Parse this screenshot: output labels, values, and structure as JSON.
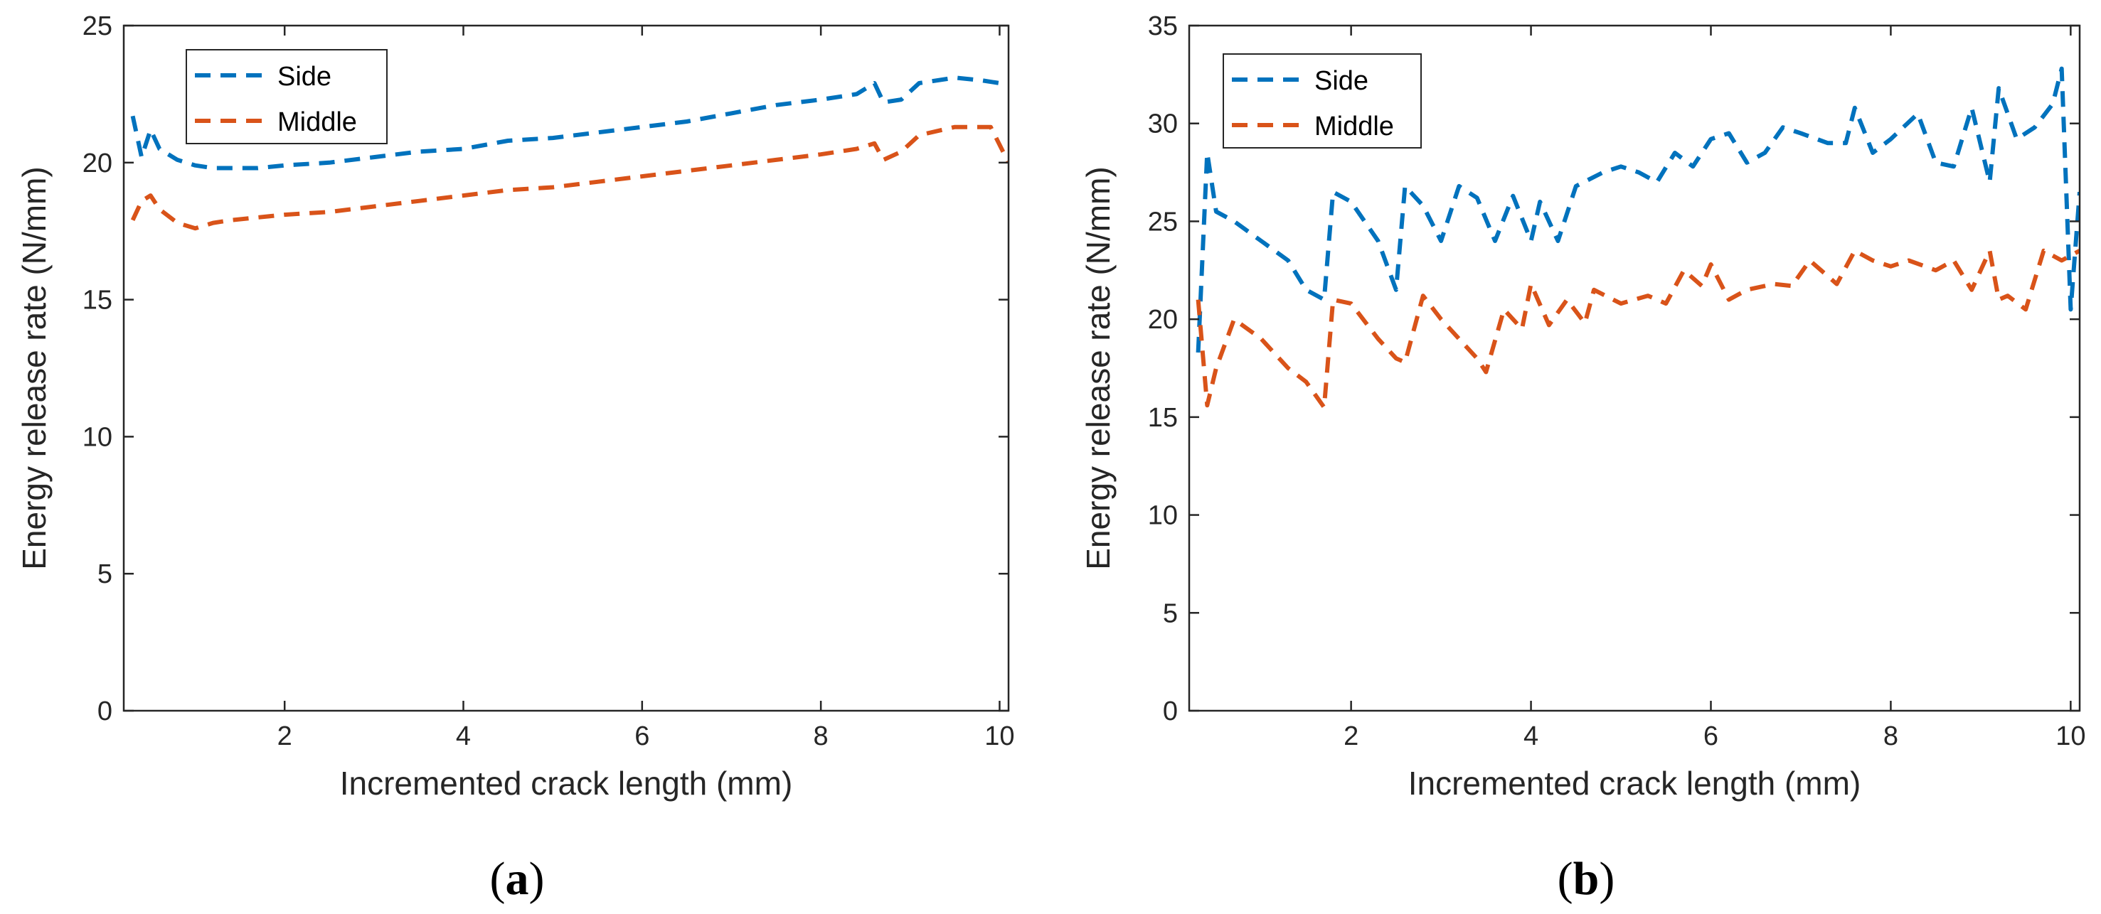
{
  "colors": {
    "side": "#0072BD",
    "middle": "#D95319",
    "axis": "#262626"
  },
  "chart_data": [
    {
      "type": "line",
      "panel_label": "a",
      "xlabel": "Incremented crack length (mm)",
      "ylabel": "Energy release rate (N/mm)",
      "xlim": [
        0.2,
        10.1
      ],
      "ylim": [
        0,
        25
      ],
      "xticks": [
        2,
        4,
        6,
        8,
        10
      ],
      "yticks": [
        0,
        5,
        10,
        15,
        20,
        25
      ],
      "legend": {
        "location": "top-left",
        "entries": [
          "Side",
          "Middle"
        ]
      },
      "grid": false,
      "series": [
        {
          "name": "Side",
          "style": "dashed",
          "x": [
            0.3,
            0.4,
            0.5,
            0.6,
            0.8,
            1.0,
            1.2,
            1.4,
            1.7,
            2.0,
            2.5,
            3.0,
            3.5,
            4.0,
            4.5,
            5.0,
            5.5,
            6.0,
            6.5,
            7.0,
            7.5,
            8.0,
            8.4,
            8.6,
            8.7,
            8.9,
            9.1,
            9.5,
            9.8,
            10.0
          ],
          "values": [
            21.7,
            20.2,
            21.2,
            20.5,
            20.1,
            19.9,
            19.8,
            19.8,
            19.8,
            19.9,
            20.0,
            20.2,
            20.4,
            20.5,
            20.8,
            20.9,
            21.1,
            21.3,
            21.5,
            21.8,
            22.1,
            22.3,
            22.5,
            22.9,
            22.2,
            22.3,
            22.9,
            23.1,
            23.0,
            22.9
          ]
        },
        {
          "name": "Middle",
          "style": "dashed",
          "x": [
            0.3,
            0.4,
            0.5,
            0.6,
            0.8,
            1.0,
            1.2,
            1.4,
            1.7,
            2.0,
            2.5,
            3.0,
            3.5,
            4.0,
            4.5,
            5.0,
            5.5,
            6.0,
            6.5,
            7.0,
            7.5,
            8.0,
            8.4,
            8.6,
            8.7,
            8.9,
            9.1,
            9.5,
            9.9,
            10.1
          ],
          "values": [
            17.9,
            18.6,
            18.8,
            18.3,
            17.8,
            17.6,
            17.8,
            17.9,
            18.0,
            18.1,
            18.2,
            18.4,
            18.6,
            18.8,
            19.0,
            19.1,
            19.3,
            19.5,
            19.7,
            19.9,
            20.1,
            20.3,
            20.5,
            20.7,
            20.1,
            20.4,
            21.0,
            21.3,
            21.3,
            20.0
          ]
        }
      ]
    },
    {
      "type": "line",
      "panel_label": "b",
      "xlabel": "Incremented crack length (mm)",
      "ylabel": "Energy release rate (N/mm)",
      "xlim": [
        0.2,
        10.1
      ],
      "ylim": [
        0,
        35
      ],
      "xticks": [
        2,
        4,
        6,
        8,
        10
      ],
      "yticks": [
        0,
        5,
        10,
        15,
        20,
        25,
        30,
        35
      ],
      "legend": {
        "location": "top-left",
        "entries": [
          "Side",
          "Middle"
        ]
      },
      "grid": false,
      "series": [
        {
          "name": "Side",
          "style": "dashed",
          "x": [
            0.3,
            0.4,
            0.5,
            0.7,
            1.0,
            1.3,
            1.5,
            1.7,
            1.8,
            2.0,
            2.3,
            2.5,
            2.6,
            2.8,
            3.0,
            3.2,
            3.4,
            3.6,
            3.8,
            4.0,
            4.1,
            4.3,
            4.5,
            4.8,
            5.0,
            5.2,
            5.4,
            5.6,
            5.8,
            6.0,
            6.2,
            6.4,
            6.6,
            6.8,
            7.0,
            7.3,
            7.5,
            7.6,
            7.8,
            8.0,
            8.3,
            8.5,
            8.7,
            8.9,
            9.1,
            9.2,
            9.4,
            9.6,
            9.8,
            9.9,
            10.0,
            10.1
          ],
          "values": [
            18.3,
            28.5,
            25.5,
            25.0,
            24.0,
            23.0,
            21.5,
            21.0,
            26.5,
            26.0,
            24.0,
            21.5,
            26.8,
            25.8,
            24.0,
            26.8,
            26.2,
            24.0,
            26.3,
            24.0,
            26.0,
            24.0,
            26.8,
            27.5,
            27.8,
            27.5,
            27.0,
            28.5,
            27.8,
            29.2,
            29.5,
            28.0,
            28.5,
            29.8,
            29.5,
            29.0,
            29.0,
            30.8,
            28.5,
            29.2,
            30.5,
            28.0,
            27.8,
            30.8,
            27.0,
            31.8,
            29.2,
            29.8,
            31.0,
            32.8,
            20.5,
            26.5
          ]
        },
        {
          "name": "Middle",
          "style": "dashed",
          "x": [
            0.3,
            0.4,
            0.5,
            0.7,
            1.0,
            1.3,
            1.5,
            1.7,
            1.8,
            2.0,
            2.3,
            2.5,
            2.6,
            2.8,
            3.0,
            3.2,
            3.4,
            3.5,
            3.7,
            3.9,
            4.0,
            4.2,
            4.4,
            4.6,
            4.7,
            5.0,
            5.3,
            5.5,
            5.7,
            5.9,
            6.0,
            6.2,
            6.4,
            6.7,
            6.9,
            7.1,
            7.4,
            7.6,
            7.8,
            8.0,
            8.2,
            8.5,
            8.7,
            8.9,
            9.1,
            9.2,
            9.3,
            9.5,
            9.7,
            9.9,
            10.1
          ],
          "values": [
            21.0,
            15.6,
            17.5,
            20.0,
            19.0,
            17.5,
            16.8,
            15.5,
            21.0,
            20.8,
            19.0,
            18.0,
            17.8,
            21.2,
            20.0,
            19.0,
            18.0,
            17.3,
            20.5,
            19.5,
            21.8,
            19.7,
            21.0,
            19.8,
            21.5,
            20.8,
            21.2,
            20.8,
            22.5,
            21.7,
            22.8,
            21.0,
            21.5,
            21.8,
            21.7,
            23.0,
            21.8,
            23.5,
            23.0,
            22.7,
            23.0,
            22.5,
            23.0,
            21.5,
            23.5,
            21.0,
            21.2,
            20.5,
            23.5,
            23.0,
            23.5
          ]
        }
      ]
    }
  ]
}
